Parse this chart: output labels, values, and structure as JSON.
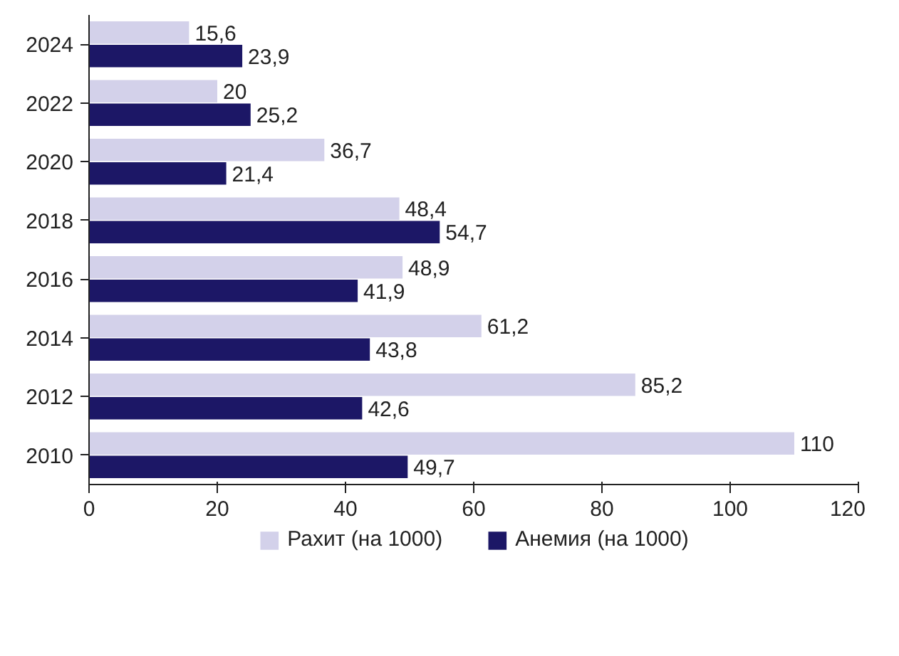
{
  "chart_data": {
    "type": "bar",
    "orientation": "horizontal",
    "categories": [
      "2024",
      "2022",
      "2020",
      "2018",
      "2016",
      "2014",
      "2012",
      "2010"
    ],
    "series": [
      {
        "name": "Рахит (на 1000)",
        "color": "#d3d1ea",
        "values": [
          15.6,
          20,
          36.7,
          48.4,
          48.9,
          61.2,
          85.2,
          110
        ],
        "value_labels": [
          "15,6",
          "20",
          "36,7",
          "48,4",
          "48,9",
          "61,2",
          "85,2",
          "110"
        ]
      },
      {
        "name": "Анемия (на 1000)",
        "color": "#1c1766",
        "values": [
          23.9,
          25.2,
          21.4,
          54.7,
          41.9,
          43.8,
          42.6,
          49.7
        ],
        "value_labels": [
          "23,9",
          "25,2",
          "21,4",
          "54,7",
          "41,9",
          "43,8",
          "42,6",
          "49,7"
        ]
      }
    ],
    "xlim": [
      0,
      120
    ],
    "xticks": [
      0,
      20,
      40,
      60,
      80,
      100,
      120
    ],
    "grid": false,
    "legend": "bottom"
  }
}
